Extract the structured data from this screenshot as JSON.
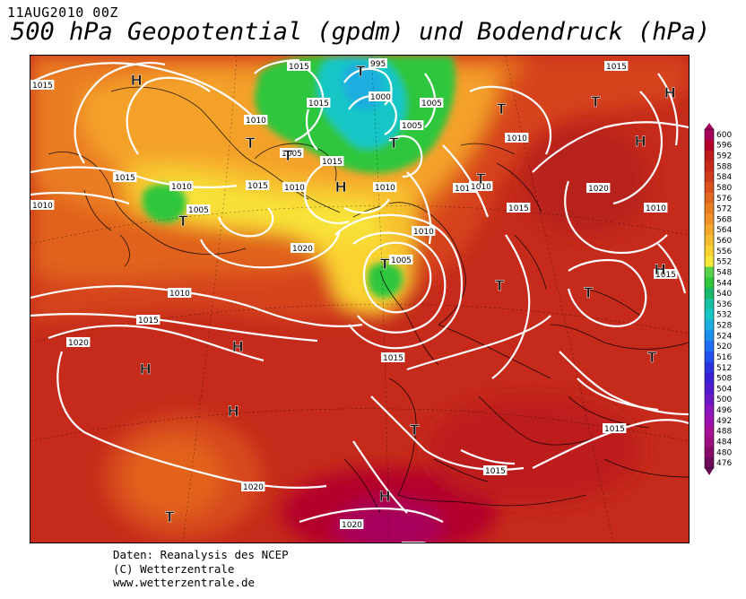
{
  "header": {
    "date_label": "11AUG2010 00Z",
    "title": "500 hPa Geopotential (gpdm) und Bodendruck (hPa)"
  },
  "legend": {
    "levels": [
      600,
      596,
      592,
      588,
      584,
      580,
      576,
      572,
      568,
      564,
      560,
      556,
      552,
      548,
      544,
      540,
      536,
      532,
      528,
      524,
      520,
      516,
      512,
      508,
      504,
      500,
      496,
      492,
      488,
      484,
      480,
      476
    ],
    "colors": [
      "#a8005c",
      "#b5002c",
      "#bf1a1a",
      "#c82a1a",
      "#d03b1c",
      "#da511d",
      "#e3671f",
      "#ea7d22",
      "#f09026",
      "#f5a72a",
      "#f8bd2e",
      "#fbd230",
      "#f7e838",
      "#55d24a",
      "#2fc63c",
      "#18ba6a",
      "#14c0a0",
      "#17c6c6",
      "#1aaede",
      "#1c8ef0",
      "#1f6ef4",
      "#2250ee",
      "#2b33e0",
      "#3a21d6",
      "#511bd0",
      "#6c18c8",
      "#8a14bd",
      "#9c10ad",
      "#a80f98",
      "#9f0e80",
      "#8a0c6a",
      "#6e0a57"
    ]
  },
  "pressure_systems": [
    {
      "type": "H",
      "lat": 72,
      "lon": -48
    },
    {
      "type": "H",
      "lat": 62,
      "lon": 60
    },
    {
      "type": "H",
      "lat": 50,
      "lon": 50
    },
    {
      "type": "H",
      "lat": 68,
      "lon": -2
    },
    {
      "type": "H",
      "lat": 66,
      "lon": -15
    },
    {
      "type": "H",
      "lat": 44,
      "lon": -33
    },
    {
      "type": "H",
      "lat": 42,
      "lon": -36
    },
    {
      "type": "H",
      "lat": 39,
      "lon": -31
    },
    {
      "type": "H",
      "lat": 26,
      "lon": 7
    },
    {
      "type": "T",
      "lat": 66,
      "lon": -22
    },
    {
      "type": "T",
      "lat": 68,
      "lon": -10
    },
    {
      "type": "T",
      "lat": 58,
      "lon": -42
    },
    {
      "type": "T",
      "lat": 80,
      "lon": 35
    },
    {
      "type": "T",
      "lat": 75,
      "lon": 25
    },
    {
      "type": "T",
      "lat": 68,
      "lon": 50
    },
    {
      "type": "T",
      "lat": 69,
      "lon": 38
    },
    {
      "type": "T",
      "lat": 68,
      "lon": 20
    },
    {
      "type": "T",
      "lat": 55,
      "lon": -14
    },
    {
      "type": "T",
      "lat": 48,
      "lon": 30
    },
    {
      "type": "T",
      "lat": 47,
      "lon": 53
    },
    {
      "type": "T",
      "lat": 36,
      "lon": 8
    },
    {
      "type": "T",
      "lat": 25,
      "lon": -28
    },
    {
      "type": "T",
      "lat": 42,
      "lon": 62
    }
  ],
  "isobar_labels": [
    "1015",
    "1010",
    "1015",
    "995",
    "1000",
    "1005",
    "1005",
    "1015",
    "1010",
    "1015",
    "1005",
    "1010",
    "1015",
    "1010",
    "1005",
    "1010",
    "1015",
    "1010",
    "1015",
    "1020",
    "1010",
    "1015",
    "1020",
    "1015",
    "1020",
    "1005",
    "1010",
    "1015",
    "1015",
    "1010",
    "1020",
    "1010",
    "1015",
    "1015",
    "1020",
    "1015",
    "1020"
  ],
  "credits": {
    "line1": "Daten: Reanalysis des NCEP",
    "line2": "(C) Wetterzentrale",
    "line3": "www.wetterzentrale.de"
  }
}
